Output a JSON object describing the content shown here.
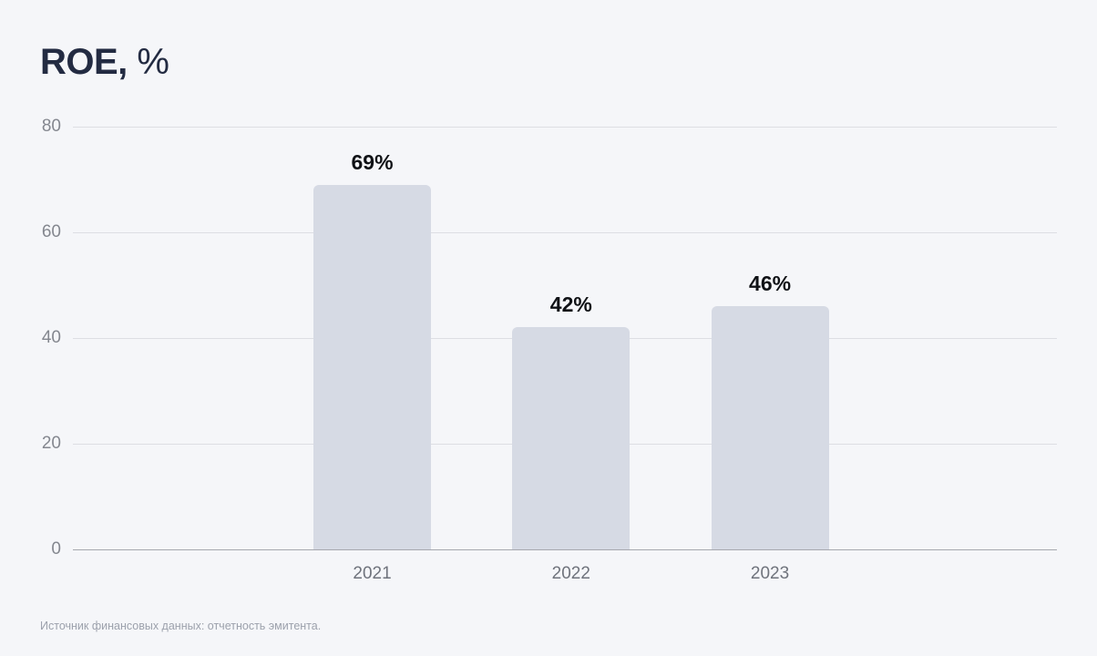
{
  "title": {
    "main": "ROE,",
    "suffix": " %"
  },
  "footer": {
    "source_note": "Источник финансовых данных: отчетность эмитента."
  },
  "colors": {
    "background": "#F5F6F9",
    "bar": "#D6DAE4",
    "title": "#232B42",
    "grid": "#DDDEE3",
    "axis_baseline": "#A6A8AE",
    "tick_label": "#84878F",
    "value_label": "#101216",
    "category_label": "#6F737C",
    "footer": "#9CA1AC"
  },
  "chart_data": {
    "type": "bar",
    "title": "ROE, %",
    "categories": [
      "2021",
      "2022",
      "2023"
    ],
    "values": [
      69,
      42,
      46
    ],
    "value_labels": [
      "69%",
      "42%",
      "46%"
    ],
    "xlabel": "",
    "ylabel": "",
    "ylim": [
      0,
      80
    ],
    "yticks": [
      0,
      20,
      40,
      60,
      80
    ],
    "grid": "horizontal",
    "legend": "none"
  }
}
